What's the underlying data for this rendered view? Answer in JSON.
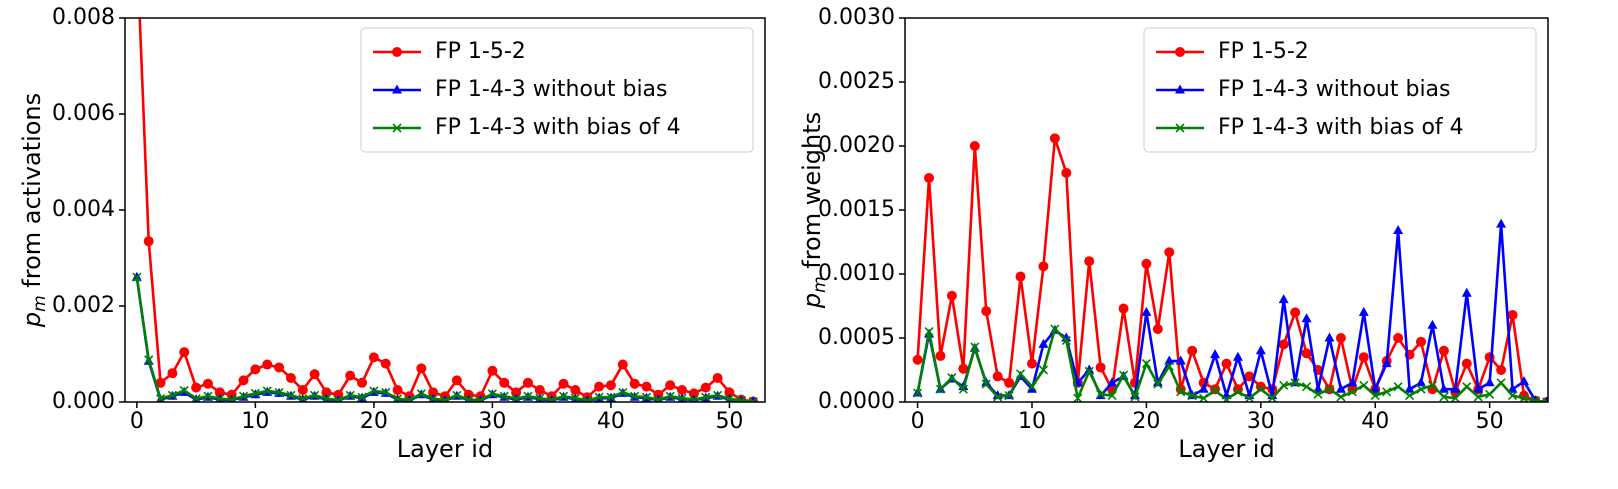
{
  "chart_data": [
    {
      "type": "line",
      "xlabel": "Layer id",
      "ylabel": [
        "p",
        "m",
        " from activations"
      ],
      "legend": "upper right",
      "xlim": [
        -1,
        53
      ],
      "ylim": [
        0,
        0.008
      ],
      "xticks": [
        0,
        10,
        20,
        30,
        40,
        50
      ],
      "yticks": [
        {
          "value": 0,
          "label": "0.000"
        },
        {
          "value": 0.002,
          "label": "0.002"
        },
        {
          "value": 0.004,
          "label": "0.004"
        },
        {
          "value": 0.006,
          "label": "0.006"
        },
        {
          "value": 0.008,
          "label": "0.008"
        }
      ],
      "x": [
        0,
        1,
        2,
        3,
        4,
        5,
        6,
        7,
        8,
        9,
        10,
        11,
        12,
        13,
        14,
        15,
        16,
        17,
        18,
        19,
        20,
        21,
        22,
        23,
        24,
        25,
        26,
        27,
        28,
        29,
        30,
        31,
        32,
        33,
        34,
        35,
        36,
        37,
        38,
        39,
        40,
        41,
        42,
        43,
        44,
        45,
        46,
        47,
        48,
        49,
        50,
        51,
        52
      ],
      "series": [
        {
          "name": "FP 1-5-2",
          "color": "#ff0000",
          "marker": "circle",
          "values": [
            0.0095,
            0.00335,
            0.0004,
            0.0006,
            0.00104,
            0.0003,
            0.00038,
            0.0002,
            0.00015,
            0.00045,
            0.00068,
            0.00078,
            0.00072,
            0.0005,
            0.00025,
            0.00058,
            0.0002,
            0.00015,
            0.00055,
            0.0004,
            0.00093,
            0.0008,
            0.00025,
            0.00012,
            0.0007,
            0.0002,
            0.00012,
            0.00045,
            0.00015,
            0.00012,
            0.00065,
            0.0004,
            0.0002,
            0.0004,
            0.00025,
            0.00012,
            0.00038,
            0.00025,
            0.0001,
            0.00032,
            0.00035,
            0.00078,
            0.00038,
            0.00032,
            0.00015,
            0.00035,
            0.00025,
            0.00018,
            0.0003,
            0.0005,
            0.0002,
            5e-05,
            1e-05
          ]
        },
        {
          "name": "FP 1-4-3 without bias",
          "color": "#0000ff",
          "marker": "triangle",
          "values": [
            0.0026,
            0.00085,
            5e-05,
            0.00012,
            0.0002,
            5e-05,
            0.0001,
            5e-05,
            4e-05,
            0.0001,
            0.00015,
            0.0002,
            0.00018,
            0.00012,
            5e-05,
            0.00012,
            5e-05,
            3e-05,
            0.00012,
            8e-05,
            0.0002,
            0.00018,
            5e-05,
            3e-05,
            0.00015,
            5e-05,
            3e-05,
            0.00012,
            4e-05,
            3e-05,
            0.00015,
            0.0001,
            5e-05,
            0.0001,
            6e-05,
            3e-05,
            0.0001,
            6e-05,
            2e-05,
            8e-05,
            8e-05,
            0.00018,
            0.0001,
            8e-05,
            4e-05,
            0.0001,
            6e-05,
            4e-05,
            8e-05,
            0.00012,
            5e-05,
            2e-05,
            1e-05
          ]
        },
        {
          "name": "FP 1-4-3 with bias of 4",
          "color": "#008000",
          "marker": "x",
          "values": [
            0.0026,
            0.00088,
            7e-05,
            0.00014,
            0.00024,
            7e-05,
            0.00012,
            7e-05,
            5e-05,
            0.00012,
            0.00018,
            0.00023,
            0.0002,
            0.00014,
            7e-05,
            0.00014,
            7e-05,
            4e-05,
            0.00014,
            0.0001,
            0.00023,
            0.0002,
            7e-05,
            4e-05,
            0.00017,
            7e-05,
            4e-05,
            0.00014,
            5e-05,
            4e-05,
            0.00017,
            0.00012,
            7e-05,
            0.00012,
            8e-05,
            4e-05,
            0.00012,
            8e-05,
            3e-05,
            0.0001,
            0.0001,
            0.0002,
            0.00012,
            0.0001,
            5e-05,
            0.00012,
            8e-05,
            5e-05,
            0.0001,
            0.00014,
            7e-05,
            3e-05,
            1e-05
          ]
        }
      ]
    },
    {
      "type": "line",
      "xlabel": "Layer id",
      "ylabel": [
        "p",
        "m",
        " from weights"
      ],
      "legend": "upper right",
      "xlim": [
        -1.1,
        55.1
      ],
      "ylim": [
        0,
        0.003
      ],
      "xticks": [
        0,
        10,
        20,
        30,
        40,
        50
      ],
      "yticks": [
        {
          "value": 0,
          "label": "0.0000"
        },
        {
          "value": 0.0005,
          "label": "0.0005"
        },
        {
          "value": 0.001,
          "label": "0.0010"
        },
        {
          "value": 0.0015,
          "label": "0.0015"
        },
        {
          "value": 0.002,
          "label": "0.0020"
        },
        {
          "value": 0.0025,
          "label": "0.0025"
        },
        {
          "value": 0.003,
          "label": "0.0030"
        }
      ],
      "x": [
        0,
        1,
        2,
        3,
        4,
        5,
        6,
        7,
        8,
        9,
        10,
        11,
        12,
        13,
        14,
        15,
        16,
        17,
        18,
        19,
        20,
        21,
        22,
        23,
        24,
        25,
        26,
        27,
        28,
        29,
        30,
        31,
        32,
        33,
        34,
        35,
        36,
        37,
        38,
        39,
        40,
        41,
        42,
        43,
        44,
        45,
        46,
        47,
        48,
        49,
        50,
        51,
        52,
        53,
        54,
        55
      ],
      "series": [
        {
          "name": "FP 1-5-2",
          "color": "#ff0000",
          "marker": "circle",
          "values": [
            0.00033,
            0.00175,
            0.00036,
            0.00083,
            0.00026,
            0.002,
            0.00071,
            0.0002,
            0.00015,
            0.00098,
            0.0003,
            0.00106,
            0.00206,
            0.00179,
            0.00015,
            0.0011,
            0.00027,
            0.0001,
            0.00073,
            0.00015,
            0.00108,
            0.00057,
            0.00117,
            0.0001,
            0.0004,
            0.00015,
            0.0001,
            0.0003,
            0.0001,
            0.0002,
            0.00012,
            0.0001,
            0.00045,
            0.0007,
            0.00038,
            0.00025,
            0.0001,
            0.0005,
            0.0001,
            0.00035,
            0.0001,
            0.00032,
            0.0005,
            0.00037,
            0.00047,
            0.0001,
            0.0004,
            8e-05,
            0.0003,
            0.0001,
            0.00035,
            0.00025,
            0.00068,
            5e-05,
            1e-05,
            0
          ]
        },
        {
          "name": "FP 1-4-3 without bias",
          "color": "#0000ff",
          "marker": "triangle",
          "values": [
            7e-05,
            0.00053,
            0.0001,
            0.00018,
            0.00012,
            0.00042,
            0.00015,
            5e-05,
            5e-05,
            0.0002,
            0.0001,
            0.00045,
            0.00056,
            0.0005,
            0.00015,
            0.00025,
            5e-05,
            0.00015,
            0.0002,
            5e-05,
            0.0007,
            0.00015,
            0.00032,
            0.00032,
            5e-05,
            0.0001,
            0.00037,
            5e-05,
            0.00035,
            5e-05,
            0.0004,
            5e-05,
            0.0008,
            0.00015,
            0.00065,
            0.0001,
            0.0005,
            0.0001,
            0.00015,
            0.0007,
            0.0001,
            0.0003,
            0.00134,
            0.0001,
            0.00015,
            0.0006,
            0.0001,
            0.0001,
            0.00085,
            0.0001,
            0.00015,
            0.00139,
            0.0001,
            0.00016,
            1e-05,
            0
          ]
        },
        {
          "name": "FP 1-4-3 with bias of 4",
          "color": "#008000",
          "marker": "x",
          "values": [
            7e-05,
            0.00055,
            0.0001,
            0.00019,
            0.0001,
            0.00043,
            0.00014,
            4e-05,
            5e-05,
            0.00022,
            0.00012,
            0.00025,
            0.00057,
            0.00048,
            3e-05,
            0.00024,
            6e-05,
            5e-05,
            0.00021,
            4e-05,
            0.0003,
            0.00014,
            0.00028,
            8e-05,
            5e-05,
            3e-05,
            9e-05,
            2e-05,
            8e-05,
            3e-05,
            0.0001,
            3e-05,
            0.00013,
            0.00015,
            0.00012,
            6e-05,
            0.0001,
            4e-05,
            8e-05,
            0.00013,
            5e-05,
            8e-05,
            0.00012,
            5e-05,
            0.0001,
            0.00013,
            4e-05,
            3e-05,
            0.00012,
            4e-05,
            6e-05,
            0.00015,
            5e-05,
            3e-05,
            1e-05,
            0
          ]
        }
      ]
    }
  ]
}
